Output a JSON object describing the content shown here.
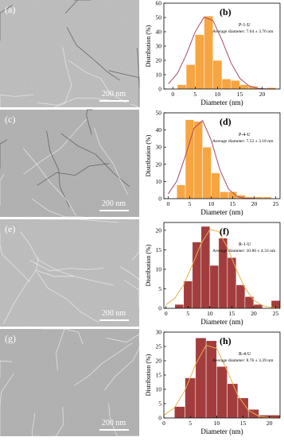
{
  "images": [
    {
      "label": "(a)",
      "scale_bar": "200 nm"
    },
    {
      "label": "(c)",
      "scale_bar": "200 nm"
    },
    {
      "label": "(e)",
      "scale_bar": "200 nm"
    },
    {
      "label": "(g)",
      "scale_bar": "200 nm"
    }
  ],
  "chart_data": [
    {
      "type": "histogram",
      "panel_label": "(b)",
      "sample": "P-1-U",
      "annotation": "Average diameter: 7.64 ± 3.76 nm",
      "xlabel": "Diameter (nm)",
      "ylabel": "Distribution (%)",
      "color": "#f7a541",
      "bins": [
        1,
        3,
        5,
        7,
        9,
        11,
        13,
        15,
        17,
        19,
        21,
        23
      ],
      "values": [
        3,
        17,
        38,
        51,
        20,
        7,
        6,
        3,
        2,
        0,
        1
      ],
      "curve": {
        "color": "#a84a6a",
        "x": [
          -1,
          1,
          3,
          5,
          7,
          9,
          11,
          13,
          15,
          17,
          19,
          21,
          23
        ],
        "y": [
          3.6,
          10.7,
          23.9,
          39.9,
          50.3,
          47.8,
          34.2,
          18.5,
          7.5,
          2.3,
          0.5,
          0.1,
          0
        ]
      },
      "xlim": [
        -2,
        24
      ],
      "xticks": [
        0,
        5,
        10,
        15,
        20
      ],
      "ylim": [
        0,
        60
      ],
      "yticks": [
        0,
        10,
        20,
        30,
        40,
        50,
        60
      ]
    },
    {
      "type": "histogram",
      "panel_label": "(d)",
      "sample": "P-4-U",
      "annotation": "Average diameter: 7.52 ± 3.18 nm",
      "xlabel": "Diameter (nm)",
      "ylabel": "Distribution (%)",
      "color": "#f7a541",
      "bins": [
        2,
        4,
        6,
        8,
        10,
        12,
        14,
        16,
        18,
        20,
        22,
        24
      ],
      "values": [
        8,
        46,
        45,
        30,
        15,
        4,
        4,
        2,
        1,
        1,
        1
      ],
      "curve": {
        "color": "#a84a6a",
        "x": [
          0,
          2,
          4,
          6,
          8,
          10,
          12,
          14,
          16,
          18,
          20
        ],
        "y": [
          2.8,
          10.2,
          24.9,
          41,
          45.5,
          34,
          17,
          5.7,
          1.3,
          0.2,
          0
        ]
      },
      "xlim": [
        -1,
        26
      ],
      "xticks": [
        0,
        5,
        10,
        15,
        20,
        25
      ],
      "ylim": [
        0,
        50
      ],
      "yticks": [
        0,
        10,
        20,
        30,
        40,
        50
      ]
    },
    {
      "type": "histogram",
      "panel_label": "(f)",
      "sample": "R-1-U",
      "annotation": "Average diameter: 10.80 ± 4.33 nm",
      "xlabel": "Diameter (nm)",
      "ylabel": "Distribution (%)",
      "color": "#a33d3d",
      "bins": [
        2,
        4,
        6,
        8,
        10,
        12,
        14,
        16,
        18,
        20,
        22,
        24,
        26
      ],
      "values": [
        1,
        7,
        17,
        21,
        11,
        18,
        13,
        6,
        3,
        1,
        0,
        2
      ],
      "curve": {
        "color": "#e8b04a",
        "x": [
          0,
          2,
          4,
          6,
          8,
          10,
          12,
          14,
          16,
          18,
          20,
          22,
          24,
          26
        ],
        "y": [
          0.9,
          2.6,
          6,
          11.1,
          16.6,
          20.2,
          19.7,
          15.6,
          10,
          5.2,
          2.1,
          0.7,
          0.2,
          0
        ]
      },
      "xlim": [
        -0.5,
        26
      ],
      "xticks": [
        0,
        5,
        10,
        15,
        20,
        25
      ],
      "ylim": [
        0,
        22
      ],
      "yticks": [
        0,
        5,
        10,
        15,
        20
      ]
    },
    {
      "type": "histogram",
      "panel_label": "(h)",
      "sample": "R-4-U",
      "annotation": "Average diameter: 8.76 ± 3.39 nm",
      "xlabel": "Diameter (nm)",
      "ylabel": "Distribution (%)",
      "color": "#a33d3d",
      "bins": [
        2,
        4,
        6,
        8,
        10,
        12,
        14,
        16,
        18,
        20,
        22
      ],
      "values": [
        4,
        14,
        28,
        27,
        18,
        12,
        7,
        3,
        1,
        1
      ],
      "curve": {
        "color": "#e8b04a",
        "x": [
          0,
          2,
          4,
          6,
          8,
          10,
          12,
          14,
          16,
          18,
          20,
          22
        ],
        "y": [
          0.9,
          3.6,
          9.7,
          18.7,
          25.4,
          24.3,
          16.5,
          7.9,
          2.7,
          0.6,
          0.1,
          0
        ]
      },
      "xlim": [
        0,
        22
      ],
      "xticks": [
        0,
        5,
        10,
        15,
        20
      ],
      "ylim": [
        0,
        30
      ],
      "yticks": [
        0,
        5,
        10,
        15,
        20,
        25,
        30
      ]
    }
  ]
}
